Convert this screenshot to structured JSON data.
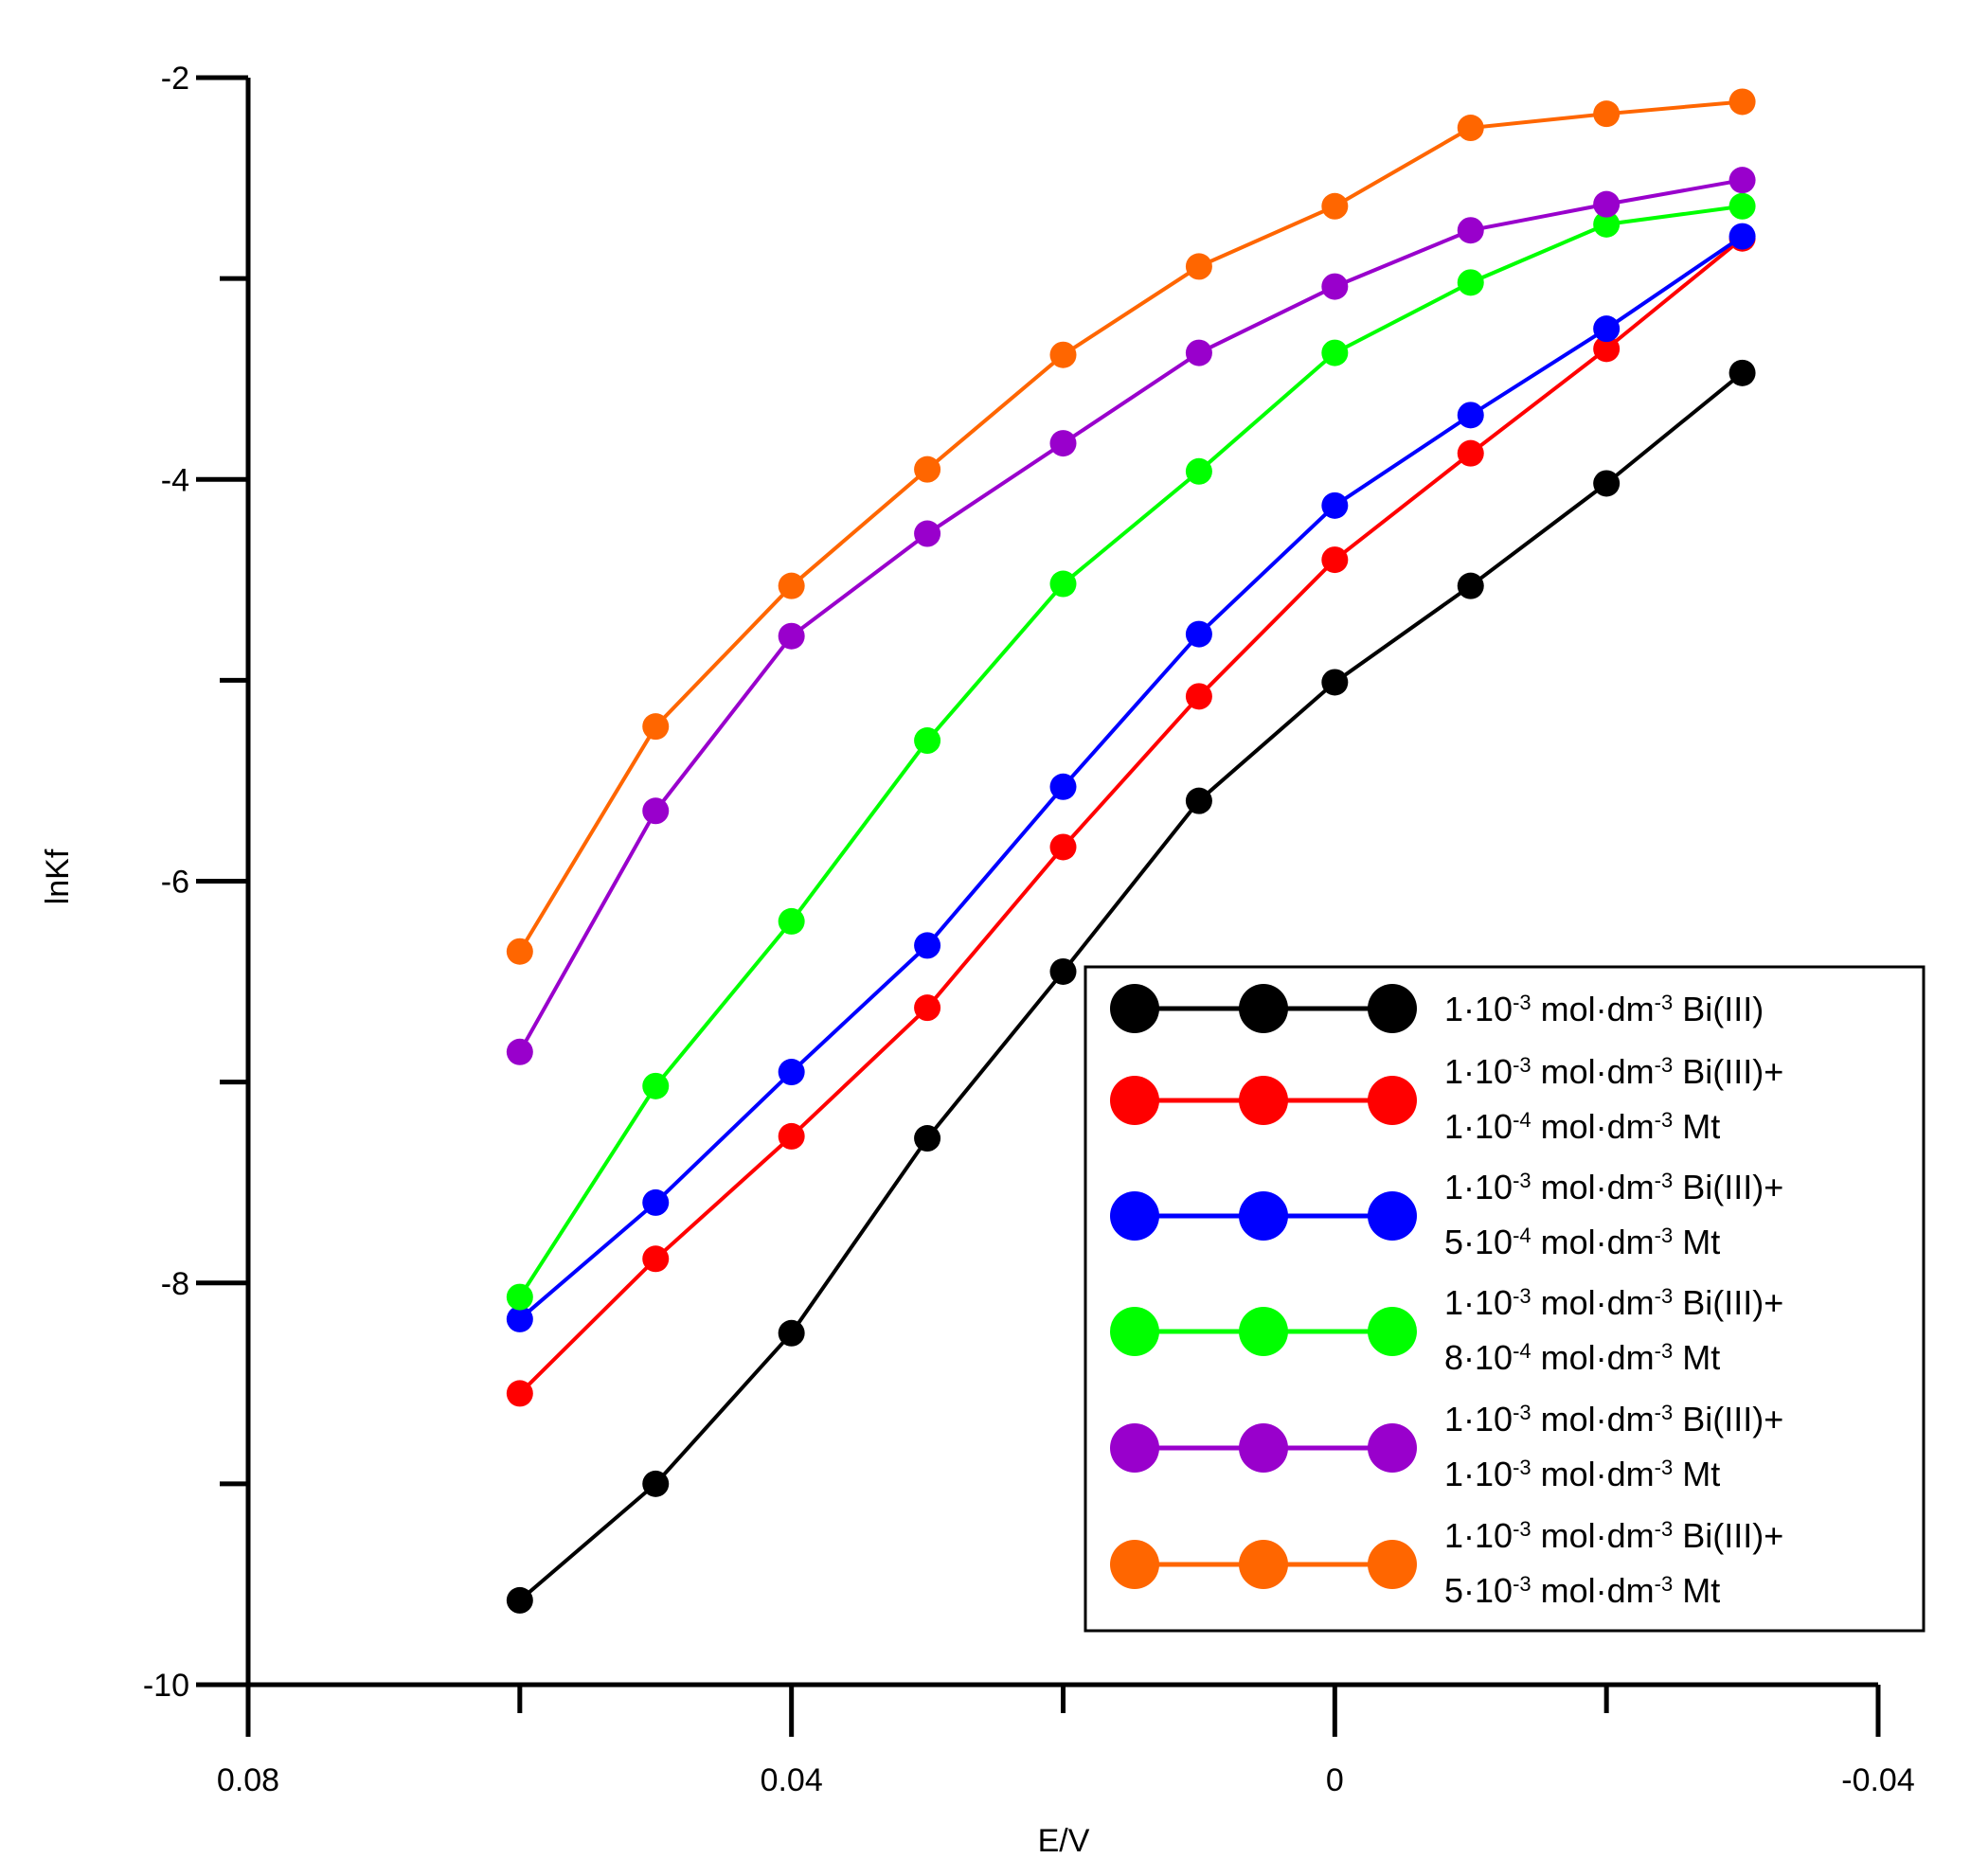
{
  "chart_data": {
    "type": "line",
    "title": "",
    "xlabel": "E/V",
    "ylabel": "lnKf",
    "xlim": [
      0.08,
      -0.04
    ],
    "ylim": [
      -10,
      -2
    ],
    "x_ticks": [
      0.08,
      0.04,
      0,
      -0.04
    ],
    "x_tick_labels": [
      "0.08",
      "0.04",
      "0",
      "-0.04"
    ],
    "y_ticks": [
      -2,
      -4,
      -6,
      -8,
      -10
    ],
    "y_tick_labels": [
      "-2",
      "-4",
      "-6",
      "-8",
      "-10"
    ],
    "legend_position": "bottom-right",
    "x": [
      0.06,
      0.05,
      0.04,
      0.03,
      0.02,
      0.01,
      0,
      -0.01,
      -0.02,
      -0.03
    ],
    "series": [
      {
        "name": "1·10⁻³ mol·dm⁻³ Bi(III)",
        "legend_lines": [
          {
            "base": "1·10",
            "sup": "-3",
            "rest": " mol·dm",
            "sup2": "-3",
            "tail": " Bi(III)"
          }
        ],
        "color": "#000000",
        "values": [
          -9.58,
          -9.0,
          -8.25,
          -7.28,
          -6.45,
          -5.6,
          -5.01,
          -4.53,
          -4.02,
          -3.47
        ]
      },
      {
        "name": "1·10⁻³ mol·dm⁻³ Bi(III)+ 1·10⁻⁴ mol·dm⁻³ Mt",
        "legend_lines": [
          {
            "base": "1·10",
            "sup": "-3",
            "rest": " mol·dm",
            "sup2": "-3",
            "tail": " Bi(III)+"
          },
          {
            "base": "1·10",
            "sup": "-4",
            "rest": " mol·dm",
            "sup2": "-3",
            "tail": " Mt"
          }
        ],
        "color": "#ff0000",
        "values": [
          -8.55,
          -7.88,
          -7.27,
          -6.63,
          -5.83,
          -5.08,
          -4.4,
          -3.87,
          -3.35,
          -2.8
        ]
      },
      {
        "name": "1·10⁻³ mol·dm⁻³ Bi(III)+ 5·10⁻⁴ mol·dm⁻³ Mt",
        "legend_lines": [
          {
            "base": "1·10",
            "sup": "-3",
            "rest": " mol·dm",
            "sup2": "-3",
            "tail": " Bi(III)+"
          },
          {
            "base": "5·10",
            "sup": "-4",
            "rest": " mol·dm",
            "sup2": "-3",
            "tail": " Mt"
          }
        ],
        "color": "#0000ff",
        "values": [
          -8.18,
          -7.6,
          -6.95,
          -6.32,
          -5.53,
          -4.77,
          -4.13,
          -3.68,
          -3.25,
          -2.79
        ]
      },
      {
        "name": "1·10⁻³ mol·dm⁻³ Bi(III)+ 8·10⁻⁴ mol·dm⁻³ Mt",
        "legend_lines": [
          {
            "base": "1·10",
            "sup": "-3",
            "rest": " mol·dm",
            "sup2": "-3",
            "tail": " Bi(III)+"
          },
          {
            "base": "8·10",
            "sup": "-4",
            "rest": " mol·dm",
            "sup2": "-3",
            "tail": " Mt"
          }
        ],
        "color": "#00ff00",
        "values": [
          -8.07,
          -7.02,
          -6.2,
          -5.3,
          -4.52,
          -3.96,
          -3.37,
          -3.02,
          -2.73,
          -2.64
        ]
      },
      {
        "name": "1·10⁻³ mol·dm⁻³ Bi(III)+ 1·10⁻³ mol·dm⁻³ Mt",
        "legend_lines": [
          {
            "base": "1·10",
            "sup": "-3",
            "rest": " mol·dm",
            "sup2": "-3",
            "tail": " Bi(III)+"
          },
          {
            "base": "1·10",
            "sup": "-3",
            "rest": " mol·dm",
            "sup2": "-3",
            "tail": " Mt"
          }
        ],
        "color": "#9900cc",
        "values": [
          -6.85,
          -5.65,
          -4.78,
          -4.27,
          -3.82,
          -3.37,
          -3.04,
          -2.76,
          -2.63,
          -2.51
        ]
      },
      {
        "name": "1·10⁻³ mol·dm⁻³ Bi(III)+ 5·10⁻³ mol·dm⁻³ Mt",
        "legend_lines": [
          {
            "base": "1·10",
            "sup": "-3",
            "rest": " mol·dm",
            "sup2": "-3",
            "tail": " Bi(III)+"
          },
          {
            "base": "5·10",
            "sup": "-3",
            "rest": " mol·dm",
            "sup2": "-3",
            "tail": " Mt"
          }
        ],
        "color": "#ff6600",
        "values": [
          -6.35,
          -5.23,
          -4.53,
          -3.95,
          -3.38,
          -2.94,
          -2.64,
          -2.25,
          -2.18,
          -2.12
        ]
      }
    ]
  }
}
